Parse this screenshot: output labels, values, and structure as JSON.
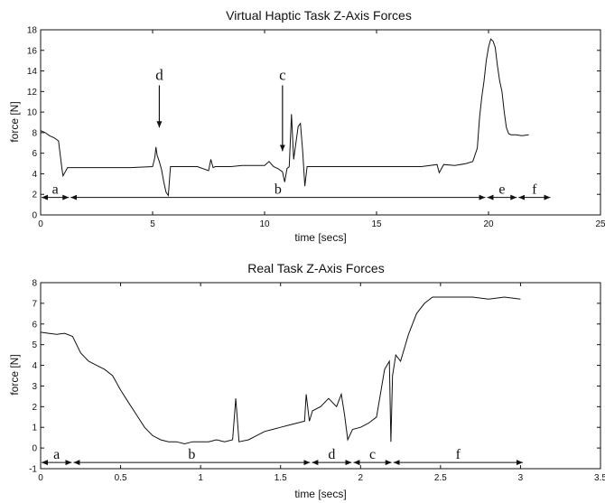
{
  "chart_data": [
    {
      "type": "line",
      "title": "Virtual Haptic Task Z-Axis Forces",
      "xlabel": "time [secs]",
      "ylabel": "force [N]",
      "xlim": [
        0,
        25
      ],
      "ylim": [
        0,
        18
      ],
      "xticks": [
        0,
        5,
        10,
        15,
        20,
        25
      ],
      "xtick_labels": [
        "0",
        "5",
        "10",
        "15",
        "20",
        "25"
      ],
      "yticks": [
        0,
        2,
        4,
        6,
        8,
        10,
        12,
        14,
        16,
        18
      ],
      "ytick_labels": [
        "0",
        "2",
        "4",
        "6",
        "8",
        "10",
        "12",
        "14",
        "16",
        "18"
      ],
      "grid": false,
      "series": [
        {
          "x": [
            0,
            0.2,
            0.4,
            0.6,
            0.8,
            0.95,
            1.0,
            1.2,
            2,
            3,
            4,
            5,
            5.1,
            5.15,
            5.2,
            5.3,
            5.4,
            5.5,
            5.6,
            5.7,
            5.8,
            6,
            7,
            7.5,
            7.6,
            7.7,
            7.8,
            8,
            8.5,
            9,
            9.5,
            10,
            10.2,
            10.4,
            10.6,
            10.8,
            10.9,
            11.0,
            11.1,
            11.2,
            11.3,
            11.5,
            11.6,
            11.7,
            11.8,
            11.9,
            12.0,
            12.5,
            13,
            14,
            15,
            16,
            17,
            17.7,
            17.8,
            18,
            18.5,
            19,
            19.3,
            19.5,
            19.6,
            19.7,
            19.8,
            19.9,
            20.0,
            20.1,
            20.2,
            20.3,
            20.4,
            20.5,
            20.6,
            20.7,
            20.8,
            20.9,
            21.0,
            21.2,
            21.5,
            21.8
          ],
          "y": [
            8.2,
            8.0,
            7.7,
            7.5,
            7.2,
            4.5,
            3.8,
            4.6,
            4.6,
            4.6,
            4.6,
            4.7,
            5.6,
            6.6,
            5.8,
            5.2,
            4.4,
            3.2,
            2.2,
            1.9,
            4.7,
            4.7,
            4.7,
            4.3,
            5.4,
            4.6,
            4.7,
            4.7,
            4.7,
            4.8,
            4.8,
            4.8,
            5.2,
            4.7,
            4.5,
            4.2,
            3.2,
            4.5,
            4.7,
            9.8,
            5.4,
            8.6,
            8.9,
            6.2,
            2.8,
            4.7,
            4.7,
            4.7,
            4.7,
            4.7,
            4.7,
            4.7,
            4.7,
            4.9,
            4.1,
            4.9,
            4.8,
            5.0,
            5.2,
            6.5,
            9.5,
            11.5,
            13.0,
            15.0,
            16.3,
            17.1,
            16.9,
            16.3,
            14.5,
            13.0,
            12.0,
            10.0,
            8.5,
            7.9,
            7.8,
            7.8,
            7.7,
            7.8
          ]
        }
      ],
      "annotations": [
        {
          "label": "d",
          "x": 5.3,
          "y_from": 12.6,
          "y_to": 8.5
        },
        {
          "label": "c",
          "x": 10.8,
          "y_from": 12.6,
          "y_to": 6.2
        }
      ],
      "segments": [
        {
          "label": "a",
          "x0": 0,
          "x1": 1.3,
          "y": 1.7
        },
        {
          "label": "b",
          "x0": 1.3,
          "x1": 19.9,
          "y": 1.7
        },
        {
          "label": "e",
          "x0": 19.9,
          "x1": 21.3,
          "y": 1.7
        },
        {
          "label": "f",
          "x0": 21.3,
          "x1": 22.8,
          "y": 1.7
        }
      ]
    },
    {
      "type": "line",
      "title": "Real Task Z-Axis Forces",
      "xlabel": "time [secs]",
      "ylabel": "force [N]",
      "xlim": [
        0,
        3.5
      ],
      "ylim": [
        -1,
        8
      ],
      "xticks": [
        0,
        0.5,
        1,
        1.5,
        2,
        2.5,
        3,
        3.5
      ],
      "xtick_labels": [
        "0",
        "0.5",
        "1",
        "1.5",
        "2",
        "2.5",
        "3",
        "3.5"
      ],
      "yticks": [
        -1,
        0,
        1,
        2,
        3,
        4,
        5,
        6,
        7,
        8
      ],
      "ytick_labels": [
        "-1",
        "0",
        "1",
        "2",
        "3",
        "4",
        "5",
        "6",
        "7",
        "8"
      ],
      "grid": false,
      "series": [
        {
          "x": [
            0,
            0.05,
            0.1,
            0.15,
            0.2,
            0.25,
            0.3,
            0.35,
            0.4,
            0.45,
            0.5,
            0.55,
            0.6,
            0.65,
            0.7,
            0.75,
            0.8,
            0.85,
            0.9,
            0.95,
            1.0,
            1.05,
            1.1,
            1.15,
            1.2,
            1.22,
            1.24,
            1.3,
            1.35,
            1.4,
            1.45,
            1.5,
            1.55,
            1.6,
            1.65,
            1.66,
            1.68,
            1.7,
            1.75,
            1.8,
            1.85,
            1.88,
            1.9,
            1.92,
            1.95,
            2.0,
            2.05,
            2.1,
            2.15,
            2.18,
            2.19,
            2.2,
            2.22,
            2.25,
            2.3,
            2.35,
            2.4,
            2.45,
            2.5,
            2.6,
            2.7,
            2.8,
            2.9,
            3.0
          ],
          "y": [
            5.6,
            5.55,
            5.5,
            5.55,
            5.4,
            4.6,
            4.2,
            4.0,
            3.8,
            3.5,
            2.8,
            2.2,
            1.6,
            1.0,
            0.6,
            0.4,
            0.3,
            0.3,
            0.2,
            0.3,
            0.3,
            0.3,
            0.4,
            0.3,
            0.4,
            2.4,
            0.3,
            0.4,
            0.6,
            0.8,
            0.9,
            1.0,
            1.1,
            1.2,
            1.3,
            2.6,
            1.3,
            1.8,
            2.0,
            2.4,
            2.0,
            2.6,
            1.6,
            0.4,
            0.9,
            1.0,
            1.2,
            1.5,
            3.8,
            4.2,
            0.3,
            3.5,
            4.5,
            4.2,
            5.5,
            6.5,
            7.0,
            7.3,
            7.3,
            7.3,
            7.3,
            7.2,
            7.3,
            7.2
          ]
        }
      ],
      "annotations": [],
      "segments": [
        {
          "label": "a",
          "x0": 0,
          "x1": 0.2,
          "y": -0.7
        },
        {
          "label": "b",
          "x0": 0.2,
          "x1": 1.69,
          "y": -0.7
        },
        {
          "label": "d",
          "x0": 1.69,
          "x1": 1.95,
          "y": -0.7
        },
        {
          "label": "c",
          "x0": 1.95,
          "x1": 2.2,
          "y": -0.7
        },
        {
          "label": "f",
          "x0": 2.2,
          "x1": 3.02,
          "y": -0.7
        }
      ]
    }
  ]
}
